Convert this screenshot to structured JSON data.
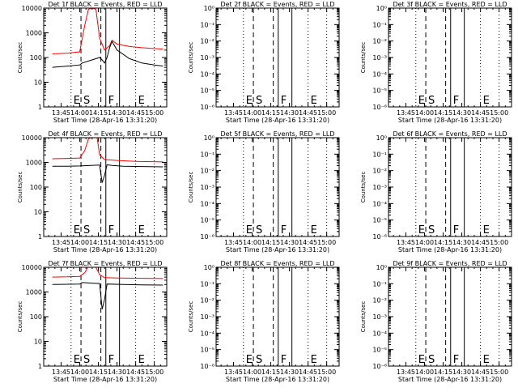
{
  "page": {
    "colors": {
      "background": "#ffffff",
      "axes": "#000000",
      "events_series": "#000000",
      "lld_series": "#ff0000"
    },
    "x_ticks": [
      "13:45",
      "14:00",
      "14:15",
      "14:30",
      "14:45",
      "15:00"
    ],
    "y_ticks_counts": [
      "1",
      "10",
      "100",
      "1000",
      "10000"
    ],
    "y_ticks_empty": [
      "10⁰",
      "10⁻¹",
      "10⁻²",
      "10⁻³",
      "10⁻⁴",
      "10⁻⁵",
      "10⁻⁶"
    ],
    "marker_letters": [
      "E",
      "S",
      "F",
      "E"
    ]
  },
  "chart_data": [
    {
      "type": "line",
      "title": "Det 1f BLACK = Events, RED = LLD",
      "xlabel": "Start Time (28-Apr-16 13:31:20)",
      "ylabel": "Counts/sec",
      "yscale": "log",
      "ylim": [
        1,
        10000
      ],
      "x_range": [
        "13:31",
        "15:10"
      ],
      "vlines": [
        {
          "time": "13:53",
          "style": "dotted",
          "label": "E"
        },
        {
          "time": "14:01",
          "style": "dashed",
          "label": "S"
        },
        {
          "time": "14:17",
          "style": "dashed"
        },
        {
          "time": "14:21",
          "style": "solid",
          "label": "F"
        },
        {
          "time": "14:32",
          "style": "solid"
        },
        {
          "time": "14:45",
          "style": "dotted",
          "label": "E"
        },
        {
          "time": "15:00",
          "style": "dotted"
        }
      ],
      "series": [
        {
          "color": "#ff0000",
          "x": [
            "13:38",
            "13:50",
            "14:00",
            "14:04",
            "14:07",
            "14:10",
            "14:13",
            "14:16",
            "14:20",
            "14:24",
            "14:26",
            "14:30",
            "14:40",
            "14:50",
            "15:00",
            "15:07"
          ],
          "values": [
            140,
            150,
            170,
            2000,
            9000,
            10000,
            9000,
            600,
            200,
            300,
            500,
            350,
            280,
            250,
            230,
            220
          ]
        },
        {
          "color": "#000000",
          "x": [
            "13:38",
            "13:50",
            "14:00",
            "14:02",
            "14:16",
            "14:18",
            "14:20",
            "14:22",
            "14:24",
            "14:26",
            "14:30",
            "14:40",
            "14:50",
            "15:00",
            "15:07"
          ],
          "values": [
            40,
            45,
            50,
            60,
            100,
            80,
            60,
            100,
            250,
            450,
            200,
            90,
            60,
            50,
            45
          ]
        }
      ]
    },
    {
      "type": "line",
      "title": "Det 2f BLACK = Events, RED = LLD",
      "xlabel": "Start Time (28-Apr-16 13:31:20)",
      "ylabel": "Counts/sec",
      "yscale": "log",
      "ylim": [
        1e-06,
        1
      ],
      "x_range": [
        "13:31",
        "15:10"
      ],
      "vlines": [
        {
          "time": "13:53",
          "style": "dotted",
          "label": "E"
        },
        {
          "time": "14:01",
          "style": "dashed",
          "label": "S"
        },
        {
          "time": "14:17",
          "style": "dashed"
        },
        {
          "time": "14:21",
          "style": "solid",
          "label": "F"
        },
        {
          "time": "14:32",
          "style": "solid"
        },
        {
          "time": "14:45",
          "style": "dotted",
          "label": "E"
        },
        {
          "time": "15:00",
          "style": "dotted"
        }
      ],
      "series": []
    },
    {
      "type": "line",
      "title": "Det 3f BLACK = Events, RED = LLD",
      "xlabel": "Start Time (28-Apr-16 13:31:20)",
      "ylabel": "Counts/sec",
      "yscale": "log",
      "ylim": [
        1e-06,
        1
      ],
      "x_range": [
        "13:31",
        "15:10"
      ],
      "vlines": [
        {
          "time": "13:53",
          "style": "dotted",
          "label": "E"
        },
        {
          "time": "14:01",
          "style": "dashed",
          "label": "S"
        },
        {
          "time": "14:17",
          "style": "dashed"
        },
        {
          "time": "14:21",
          "style": "solid",
          "label": "F"
        },
        {
          "time": "14:32",
          "style": "solid"
        },
        {
          "time": "14:45",
          "style": "dotted",
          "label": "E"
        },
        {
          "time": "15:00",
          "style": "dotted"
        }
      ],
      "series": []
    },
    {
      "type": "line",
      "title": "Det 4f BLACK = Events, RED = LLD",
      "xlabel": "Start Time (28-Apr-16 13:31:20)",
      "ylabel": "Counts/sec",
      "yscale": "log",
      "ylim": [
        1,
        10000
      ],
      "x_range": [
        "13:31",
        "15:10"
      ],
      "vlines": [
        {
          "time": "13:53",
          "style": "dotted",
          "label": "E"
        },
        {
          "time": "14:01",
          "style": "dashed",
          "label": "S"
        },
        {
          "time": "14:17",
          "style": "dashed"
        },
        {
          "time": "14:21",
          "style": "solid",
          "label": "F"
        },
        {
          "time": "14:32",
          "style": "solid"
        },
        {
          "time": "14:45",
          "style": "dotted",
          "label": "E"
        },
        {
          "time": "15:00",
          "style": "dotted"
        }
      ],
      "series": [
        {
          "color": "#ff0000",
          "x": [
            "13:38",
            "13:50",
            "14:00",
            "14:04",
            "14:07",
            "14:11",
            "14:14",
            "14:16",
            "14:20",
            "14:30",
            "14:45",
            "15:07"
          ],
          "values": [
            1400,
            1450,
            1500,
            3000,
            9000,
            11000,
            10000,
            2000,
            1300,
            1200,
            1100,
            1050
          ]
        },
        {
          "color": "#000000",
          "x": [
            "13:38",
            "13:50",
            "14:00",
            "14:16",
            "14:18",
            "14:20",
            "14:22",
            "14:26",
            "14:35",
            "14:50",
            "15:07"
          ],
          "values": [
            700,
            700,
            720,
            780,
            150,
            300,
            800,
            750,
            700,
            680,
            660
          ]
        }
      ]
    },
    {
      "type": "line",
      "title": "Det 5f BLACK = Events, RED = LLD",
      "xlabel": "Start Time (28-Apr-16 13:31:20)",
      "ylabel": "Counts/sec",
      "yscale": "log",
      "ylim": [
        1e-06,
        1
      ],
      "x_range": [
        "13:31",
        "15:10"
      ],
      "vlines": [
        {
          "time": "13:53",
          "style": "dotted",
          "label": "E"
        },
        {
          "time": "14:01",
          "style": "dashed",
          "label": "S"
        },
        {
          "time": "14:17",
          "style": "dashed"
        },
        {
          "time": "14:21",
          "style": "solid",
          "label": "F"
        },
        {
          "time": "14:32",
          "style": "solid"
        },
        {
          "time": "14:45",
          "style": "dotted",
          "label": "E"
        },
        {
          "time": "15:00",
          "style": "dotted"
        }
      ],
      "series": []
    },
    {
      "type": "line",
      "title": "Det 6f BLACK = Events, RED = LLD",
      "xlabel": "Start Time (28-Apr-16 13:31:20)",
      "ylabel": "Counts/sec",
      "yscale": "log",
      "ylim": [
        1e-06,
        1
      ],
      "x_range": [
        "13:31",
        "15:10"
      ],
      "vlines": [
        {
          "time": "13:53",
          "style": "dotted",
          "label": "E"
        },
        {
          "time": "14:01",
          "style": "dashed",
          "label": "S"
        },
        {
          "time": "14:17",
          "style": "dashed"
        },
        {
          "time": "14:21",
          "style": "solid",
          "label": "F"
        },
        {
          "time": "14:32",
          "style": "solid"
        },
        {
          "time": "14:45",
          "style": "dotted",
          "label": "E"
        },
        {
          "time": "15:00",
          "style": "dotted"
        }
      ],
      "series": []
    },
    {
      "type": "line",
      "title": "Det 7f BLACK = Events, RED = LLD",
      "xlabel": "Start Time (28-Apr-16 13:31:20)",
      "ylabel": "Counts/sec",
      "yscale": "log",
      "ylim": [
        1,
        10000
      ],
      "x_range": [
        "13:31",
        "15:10"
      ],
      "vlines": [
        {
          "time": "13:53",
          "style": "dotted",
          "label": "E"
        },
        {
          "time": "14:01",
          "style": "dashed",
          "label": "S"
        },
        {
          "time": "14:17",
          "style": "dashed"
        },
        {
          "time": "14:21",
          "style": "solid",
          "label": "F"
        },
        {
          "time": "14:32",
          "style": "solid"
        },
        {
          "time": "14:45",
          "style": "dotted",
          "label": "E"
        },
        {
          "time": "15:00",
          "style": "dotted"
        }
      ],
      "series": [
        {
          "color": "#ff0000",
          "x": [
            "13:38",
            "13:50",
            "14:00",
            "14:04",
            "14:07",
            "14:10",
            "14:13",
            "14:16",
            "14:20",
            "14:30",
            "14:45",
            "15:07"
          ],
          "values": [
            4000,
            4100,
            4300,
            6000,
            11000,
            12000,
            10000,
            5000,
            3800,
            3700,
            3600,
            3500
          ]
        },
        {
          "color": "#000000",
          "x": [
            "13:38",
            "13:50",
            "14:00",
            "14:02",
            "14:16",
            "14:18",
            "14:20",
            "14:22",
            "14:35",
            "14:50",
            "15:07"
          ],
          "values": [
            2000,
            2050,
            2100,
            2400,
            2200,
            200,
            500,
            2100,
            2000,
            1950,
            1900
          ]
        }
      ]
    },
    {
      "type": "line",
      "title": "Det 8f BLACK = Events, RED = LLD",
      "xlabel": "Start Time (28-Apr-16 13:31:20)",
      "ylabel": "Counts/sec",
      "yscale": "log",
      "ylim": [
        1e-06,
        1
      ],
      "x_range": [
        "13:31",
        "15:10"
      ],
      "vlines": [
        {
          "time": "13:53",
          "style": "dotted",
          "label": "E"
        },
        {
          "time": "14:01",
          "style": "dashed",
          "label": "S"
        },
        {
          "time": "14:17",
          "style": "dashed"
        },
        {
          "time": "14:21",
          "style": "solid",
          "label": "F"
        },
        {
          "time": "14:32",
          "style": "solid"
        },
        {
          "time": "14:45",
          "style": "dotted",
          "label": "E"
        },
        {
          "time": "15:00",
          "style": "dotted"
        }
      ],
      "series": []
    },
    {
      "type": "line",
      "title": "Det 9f BLACK = Events, RED = LLD",
      "xlabel": "Start Time (28-Apr-16 13:31:20)",
      "ylabel": "Counts/sec",
      "yscale": "log",
      "ylim": [
        1e-06,
        1
      ],
      "x_range": [
        "13:31",
        "15:10"
      ],
      "vlines": [
        {
          "time": "13:53",
          "style": "dotted",
          "label": "E"
        },
        {
          "time": "14:01",
          "style": "dashed",
          "label": "S"
        },
        {
          "time": "14:17",
          "style": "dashed"
        },
        {
          "time": "14:21",
          "style": "solid",
          "label": "F"
        },
        {
          "time": "14:32",
          "style": "solid"
        },
        {
          "time": "14:45",
          "style": "dotted",
          "label": "E"
        },
        {
          "time": "15:00",
          "style": "dotted"
        }
      ],
      "series": []
    }
  ]
}
